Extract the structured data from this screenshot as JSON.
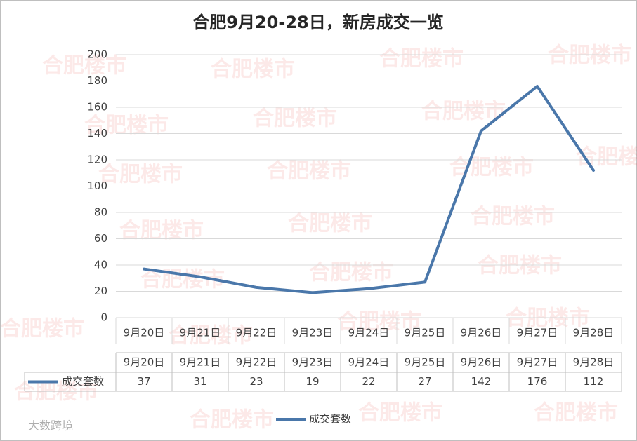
{
  "chart_data": {
    "type": "line",
    "title": "合肥9月20-28日，新房成交一览",
    "categories": [
      "9月20日",
      "9月21日",
      "9月22日",
      "9月23日",
      "9月24日",
      "9月25日",
      "9月26日",
      "9月27日",
      "9月28日"
    ],
    "series": [
      {
        "name": "成交套数",
        "color": "#4a77aa",
        "values": [
          37,
          31,
          23,
          19,
          22,
          27,
          142,
          176,
          112
        ]
      }
    ],
    "ylim": [
      0,
      200
    ],
    "yticks": [
      0,
      20,
      40,
      60,
      80,
      100,
      120,
      140,
      160,
      180,
      200
    ],
    "grid": true,
    "data_table": true,
    "legend": "bottom"
  },
  "watermarks": [
    "合肥楼市",
    "大数跨境"
  ]
}
